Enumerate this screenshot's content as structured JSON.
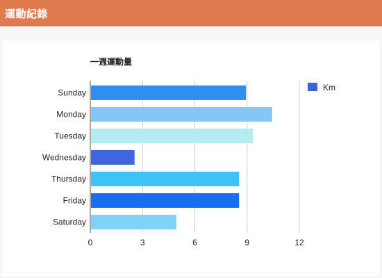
{
  "header": {
    "title": "運動紀錄",
    "color": "#e07a4f"
  },
  "chart_data": {
    "type": "bar",
    "orientation": "horizontal",
    "title": "一週運動量",
    "xlabel": "",
    "ylabel": "",
    "categories": [
      "Sunday",
      "Monday",
      "Tuesday",
      "Wednesday",
      "Thursday",
      "Friday",
      "Saturday"
    ],
    "series": [
      {
        "name": "Km",
        "values": [
          8.9,
          10.4,
          9.3,
          2.5,
          8.5,
          8.5,
          4.9
        ],
        "legend_color": "#3b64d6"
      }
    ],
    "bar_colors": [
      "#2e8ff0",
      "#84c6f7",
      "#b4ecf2",
      "#3f66dc",
      "#3dc3f5",
      "#1a6ff0",
      "#7fd3f8"
    ],
    "xlim": [
      0,
      12
    ],
    "xticks": [
      0,
      3,
      6,
      9,
      12
    ],
    "grid": true,
    "legend_position": "right"
  }
}
